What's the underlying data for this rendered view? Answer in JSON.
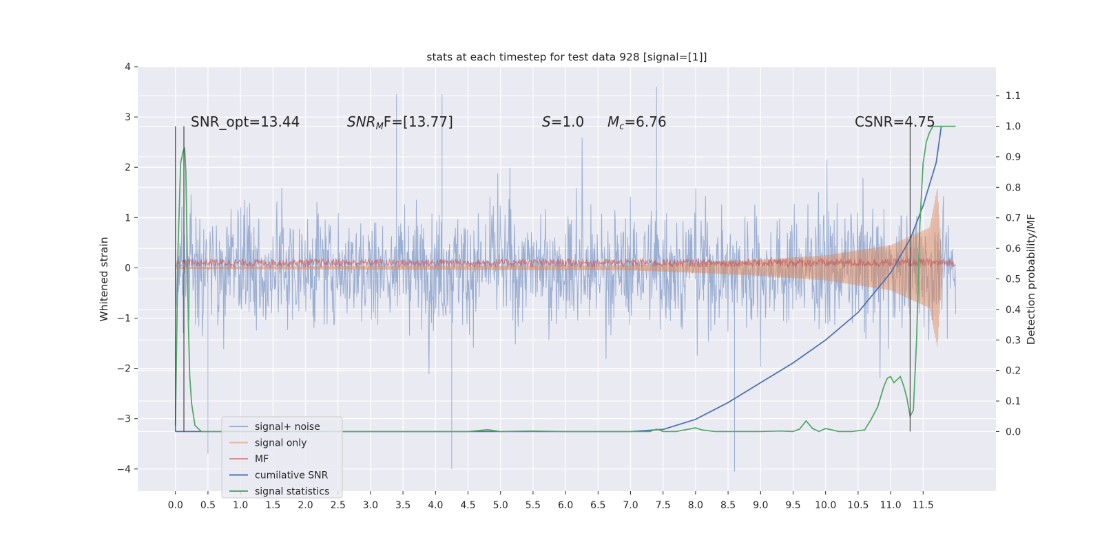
{
  "chart_data": {
    "type": "line",
    "title": "stats at each timestep for test data 928 [signal=[1]]",
    "xlabel": "",
    "ylabel": "Whitened strain",
    "ylabel_right": "Detection probability/MF",
    "xlim": [
      -0.58,
      12.62
    ],
    "ylim": [
      -4.44,
      4.0
    ],
    "ylim_right": [
      -0.195,
      1.195
    ],
    "grid": true,
    "x_ticks": [
      "0.0",
      "0.5",
      "1.0",
      "1.5",
      "2.0",
      "2.5",
      "3.0",
      "3.5",
      "4.0",
      "4.5",
      "5.0",
      "5.5",
      "6.0",
      "6.5",
      "7.0",
      "7.5",
      "8.0",
      "8.5",
      "9.0",
      "9.5",
      "10.0",
      "10.5",
      "11.0",
      "11.5"
    ],
    "y_ticks": [
      "−4",
      "−3",
      "−2",
      "−1",
      "0",
      "1",
      "2",
      "3",
      "4"
    ],
    "y_ticks_right": [
      "0.0",
      "0.1",
      "0.2",
      "0.3",
      "0.4",
      "0.5",
      "0.6",
      "0.7",
      "0.8",
      "0.9",
      "1.0",
      "1.1"
    ],
    "legend_position": "lower-left",
    "annotations": {
      "snr_opt": "SNR_opt=13.44",
      "snr_mf_label": "SNR",
      "snr_mf_sub": "M",
      "snr_mf_value": "F=[13.77]",
      "s_label": "S",
      "s_value": "=1.0",
      "mc_label": "M",
      "mc_sub": "c",
      "mc_value": "=6.76",
      "csnr": "CSNR=4.75"
    },
    "series": [
      {
        "name": "signal+ noise",
        "color": "#4c72b0",
        "alpha": 0.5,
        "axis": "left",
        "kind": "noise",
        "x_range": [
          0.0,
          12.0
        ],
        "envelope": [
          -2.3,
          2.3
        ],
        "extremes": [
          [
            3.4,
            3.45
          ],
          [
            4.1,
            3.45
          ],
          [
            7.4,
            3.6
          ],
          [
            4.25,
            -4.0
          ],
          [
            8.6,
            -4.05
          ],
          [
            0.5,
            -3.7
          ]
        ]
      },
      {
        "name": "signal only",
        "color": "#dd8452",
        "alpha": 0.5,
        "axis": "left",
        "kind": "chirp",
        "amplitude_points": [
          [
            0.0,
            0.02
          ],
          [
            7.0,
            0.05
          ],
          [
            8.0,
            0.1
          ],
          [
            9.0,
            0.16
          ],
          [
            10.0,
            0.25
          ],
          [
            11.0,
            0.45
          ],
          [
            11.6,
            0.8
          ],
          [
            11.72,
            1.6
          ],
          [
            11.8,
            0.0
          ]
        ]
      },
      {
        "name": "MF",
        "color": "#c44e52",
        "alpha": 0.6,
        "axis": "left",
        "kind": "band",
        "center": 0.1,
        "half_width": 0.08
      },
      {
        "name": "cumilative SNR",
        "color": "#4c72b0",
        "alpha": 1.0,
        "axis": "right",
        "x": [
          0.0,
          1.0,
          3.0,
          5.0,
          6.0,
          7.0,
          7.5,
          8.0,
          8.5,
          9.0,
          9.5,
          10.0,
          10.5,
          11.0,
          11.3,
          11.5,
          11.7,
          11.78
        ],
        "y": [
          0.0,
          0.0,
          0.0,
          0.0,
          0.0,
          0.0,
          0.007,
          0.04,
          0.095,
          0.16,
          0.225,
          0.3,
          0.39,
          0.52,
          0.63,
          0.74,
          0.88,
          1.0
        ]
      },
      {
        "name": "signal statistics",
        "color": "#55a868",
        "alpha": 1.0,
        "axis": "right",
        "x": [
          0.0,
          0.04,
          0.08,
          0.1,
          0.12,
          0.14,
          0.16,
          0.18,
          0.2,
          0.22,
          0.25,
          0.3,
          0.4,
          0.6,
          1.0,
          2.0,
          3.0,
          4.0,
          4.5,
          4.8,
          5.0,
          5.5,
          6.0,
          6.5,
          7.0,
          7.3,
          7.4,
          7.5,
          7.7,
          8.0,
          8.1,
          8.3,
          8.6,
          9.0,
          9.3,
          9.5,
          9.6,
          9.7,
          9.8,
          9.9,
          10.0,
          10.2,
          10.4,
          10.6,
          10.7,
          10.8,
          10.9,
          10.95,
          11.0,
          11.05,
          11.1,
          11.15,
          11.2,
          11.25,
          11.3,
          11.35,
          11.4,
          11.45,
          11.5,
          11.55,
          11.6,
          11.65,
          12.0
        ],
        "y": [
          0.02,
          0.6,
          0.88,
          0.9,
          0.92,
          0.93,
          0.85,
          0.6,
          0.35,
          0.18,
          0.09,
          0.02,
          0.0,
          0.0,
          0.0,
          0.0,
          0.0,
          0.0,
          0.0,
          0.006,
          0.0,
          0.002,
          0.0,
          0.0,
          0.0,
          0.0,
          0.008,
          0.0,
          0.0,
          0.012,
          0.005,
          0.0,
          0.0,
          0.0,
          0.002,
          0.0,
          0.008,
          0.035,
          0.01,
          0.0,
          0.01,
          0.0,
          0.0,
          0.005,
          0.04,
          0.08,
          0.15,
          0.175,
          0.18,
          0.16,
          0.17,
          0.18,
          0.15,
          0.11,
          0.05,
          0.07,
          0.3,
          0.68,
          0.88,
          0.95,
          0.98,
          1.0,
          1.0
        ]
      }
    ],
    "vertical_lines_x": [
      0.0,
      0.13,
      11.3
    ]
  }
}
